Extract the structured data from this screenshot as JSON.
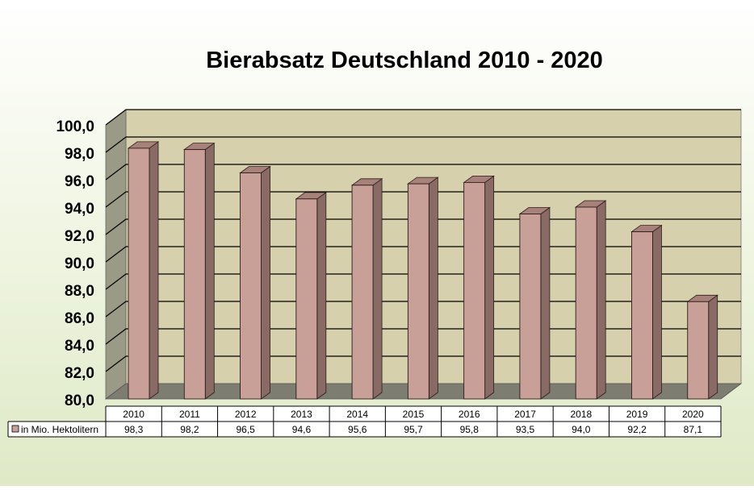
{
  "chart_data": {
    "type": "bar",
    "title": "Bierabsatz Deutschland 2010 - 2020",
    "categories": [
      "2010",
      "2011",
      "2012",
      "2013",
      "2014",
      "2015",
      "2016",
      "2017",
      "2018",
      "2019",
      "2020"
    ],
    "series": [
      {
        "name": "in Mio. Hektolitern",
        "values": [
          98.3,
          98.2,
          96.5,
          94.6,
          95.6,
          95.7,
          95.8,
          93.5,
          94.0,
          92.2,
          87.1
        ],
        "labels": [
          "98,3",
          "98,2",
          "96,5",
          "94,6",
          "95,6",
          "95,7",
          "95,8",
          "93,5",
          "94,0",
          "92,2",
          "87,1"
        ]
      }
    ],
    "ylim": [
      80,
      100
    ],
    "yticks": [
      80,
      82,
      84,
      86,
      88,
      90,
      92,
      94,
      96,
      98,
      100
    ],
    "ytick_labels": [
      "80,0",
      "82,0",
      "84,0",
      "86,0",
      "88,0",
      "90,0",
      "92,0",
      "94,0",
      "96,0",
      "98,0",
      "100,0"
    ],
    "grid": true,
    "legend": "data-table",
    "colors": {
      "bar_front": "#c9a098",
      "bar_side": "#8a6a64",
      "bar_top": "#a8817a",
      "wall": "#d6d0ad",
      "side_wall": "#9a9a86",
      "floor": "#7d7d72"
    }
  }
}
